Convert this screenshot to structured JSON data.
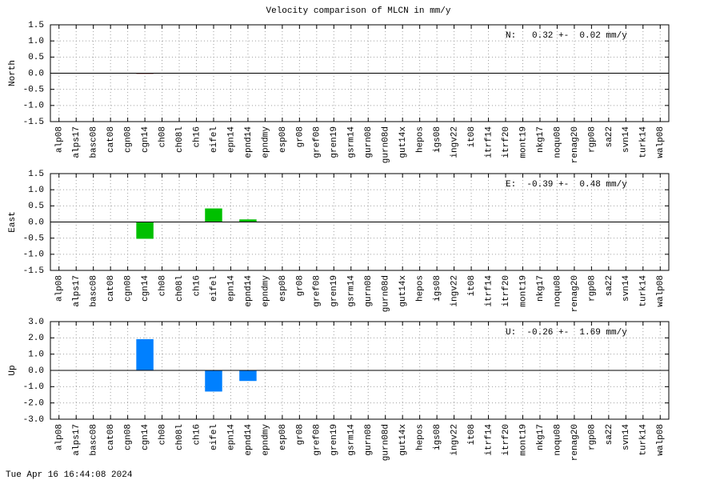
{
  "chart_data": [
    {
      "type": "bar",
      "title": "Velocity comparison of MLCN in mm/y",
      "ylabel": "North",
      "annotation": "N:   0.32 +-  0.02 mm/y",
      "categories": [
        "alp08",
        "alps17",
        "basc08",
        "cat08",
        "cgn08",
        "cgn14",
        "ch08",
        "ch08l",
        "ch16",
        "eifel",
        "epn14",
        "epnd14",
        "epndmy",
        "esp08",
        "gr08",
        "gref08",
        "gren19",
        "gsrm14",
        "gurn08",
        "gurn08d",
        "gut14x",
        "hepos",
        "igs08",
        "ingv22",
        "it08",
        "itrf14",
        "itrf20",
        "mont19",
        "nkg17",
        "noqu08",
        "renag20",
        "rgp08",
        "sa22",
        "svn14",
        "turk14",
        "walp08"
      ],
      "values": [
        0,
        0,
        0,
        0,
        0,
        -0.02,
        0,
        0,
        0,
        0,
        0,
        0,
        0,
        0,
        0,
        0,
        0,
        0,
        0,
        0,
        0,
        0,
        0,
        0,
        0,
        0,
        0,
        0,
        0,
        0,
        0,
        0,
        0,
        0,
        0,
        0
      ],
      "color": "#8b0000",
      "ylim": [
        -1.5,
        1.5
      ],
      "yticks": [
        -1.5,
        {
          "value": -1,
          "label": "-1.0"
        },
        -0.5,
        {
          "value": 0,
          "label": "0.0"
        },
        0.5,
        {
          "value": 1,
          "label": "1.0"
        },
        1.5
      ],
      "grid": true
    },
    {
      "type": "bar",
      "ylabel": "East",
      "annotation": "E:  -0.39 +-  0.48 mm/y",
      "categories": [
        "alp08",
        "alps17",
        "basc08",
        "cat08",
        "cgn08",
        "cgn14",
        "ch08",
        "ch08l",
        "ch16",
        "eifel",
        "epn14",
        "epnd14",
        "epndmy",
        "esp08",
        "gr08",
        "gref08",
        "gren19",
        "gsrm14",
        "gurn08",
        "gurn08d",
        "gut14x",
        "hepos",
        "igs08",
        "ingv22",
        "it08",
        "itrf14",
        "itrf20",
        "mont19",
        "nkg17",
        "noqu08",
        "renag20",
        "rgp08",
        "sa22",
        "svn14",
        "turk14",
        "walp08"
      ],
      "values": [
        0,
        0,
        0,
        0,
        0,
        -0.52,
        0,
        0,
        0,
        0.42,
        0,
        0.08,
        0,
        0,
        0,
        0,
        0,
        0,
        0,
        0,
        0,
        0,
        0,
        0,
        0,
        0,
        0,
        0,
        0,
        0,
        0,
        0,
        0,
        0,
        0,
        0
      ],
      "color": "#00c000",
      "ylim": [
        -1.5,
        1.5
      ],
      "yticks": [
        -1.5,
        {
          "value": -1,
          "label": "-1.0"
        },
        -0.5,
        {
          "value": 0,
          "label": "0.0"
        },
        0.5,
        {
          "value": 1,
          "label": "1.0"
        },
        1.5
      ],
      "grid": true
    },
    {
      "type": "bar",
      "ylabel": "Up",
      "annotation": "U:  -0.26 +-  1.69 mm/y",
      "categories": [
        "alp08",
        "alps17",
        "basc08",
        "cat08",
        "cgn08",
        "cgn14",
        "ch08",
        "ch08l",
        "ch16",
        "eifel",
        "epn14",
        "epnd14",
        "epndmy",
        "esp08",
        "gr08",
        "gref08",
        "gren19",
        "gsrm14",
        "gurn08",
        "gurn08d",
        "gut14x",
        "hepos",
        "igs08",
        "ingv22",
        "it08",
        "itrf14",
        "itrf20",
        "mont19",
        "nkg17",
        "noqu08",
        "renag20",
        "rgp08",
        "sa22",
        "svn14",
        "turk14",
        "walp08"
      ],
      "values": [
        0,
        0,
        0,
        0,
        0,
        1.92,
        0,
        0,
        0,
        -1.3,
        0,
        -0.65,
        0,
        0,
        0,
        0,
        0,
        0,
        0,
        0,
        0,
        0,
        0,
        0,
        0,
        0,
        0,
        0,
        0,
        0,
        0,
        0,
        0,
        0,
        0,
        0
      ],
      "color": "#0080ff",
      "ylim": [
        -3,
        3
      ],
      "yticks": [
        {
          "value": -3,
          "label": "-3.0"
        },
        {
          "value": -2,
          "label": "-2.0"
        },
        {
          "value": -1,
          "label": "-1.0"
        },
        {
          "value": 0,
          "label": "0.0"
        },
        {
          "value": 1,
          "label": "1.0"
        },
        {
          "value": 2,
          "label": "2.0"
        },
        {
          "value": 3,
          "label": "3.0"
        }
      ],
      "grid": true
    }
  ],
  "timestamp": "Tue Apr 16 16:44:08 2024"
}
